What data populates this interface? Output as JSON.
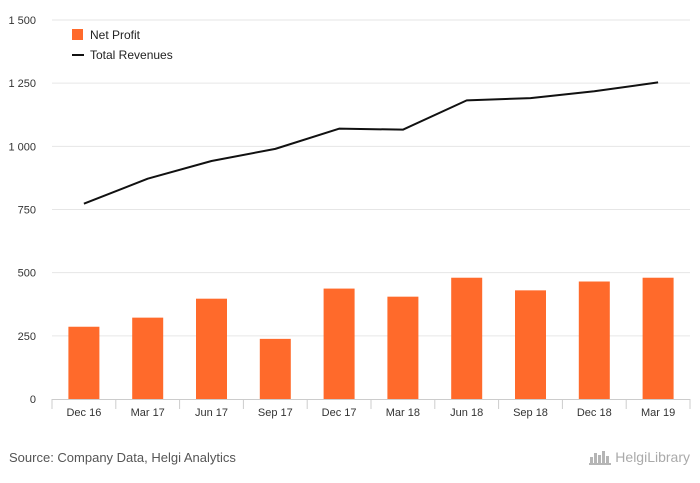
{
  "chart_data": {
    "type": "bar",
    "categories": [
      "Dec 16",
      "Mar 17",
      "Jun 17",
      "Sep 17",
      "Dec 17",
      "Mar 18",
      "Jun 18",
      "Sep 18",
      "Dec 18",
      "Mar 19"
    ],
    "series": [
      {
        "name": "Net Profit",
        "kind": "bar",
        "color": "#ff6a2b",
        "values": [
          286,
          322,
          397,
          238,
          437,
          405,
          480,
          430,
          465,
          480
        ]
      },
      {
        "name": "Total Revenues",
        "kind": "line",
        "color": "#111111",
        "values": [
          773,
          872,
          942,
          990,
          1070,
          1066,
          1182,
          1191,
          1218,
          1253
        ]
      }
    ],
    "y_ticks": [
      "0",
      "250",
      "500",
      "750",
      "1 000",
      "1 250",
      "1 500"
    ],
    "ylim": [
      0,
      1500
    ],
    "grid": true,
    "legend_position": "top-left"
  },
  "footer": {
    "source": "Source: Company Data, Helgi Analytics",
    "logo_text": "HelgiLibrary"
  }
}
